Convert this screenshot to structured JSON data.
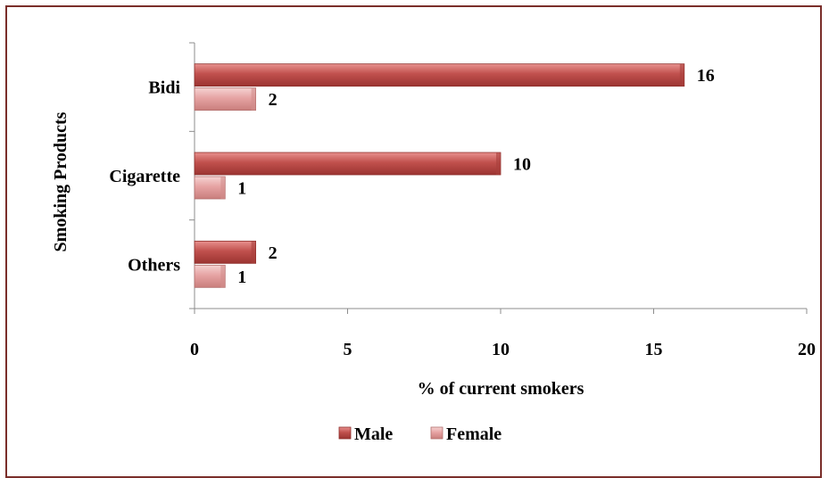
{
  "chart_data": {
    "type": "bar",
    "orientation": "horizontal",
    "categories": [
      "Bidi",
      "Cigarette",
      "Others"
    ],
    "series": [
      {
        "name": "Male",
        "values": [
          16,
          10,
          2
        ],
        "color": "#c0504d"
      },
      {
        "name": "Female",
        "values": [
          2,
          1,
          1
        ],
        "color": "#e6a3a3"
      }
    ],
    "data_labels": {
      "Male": [
        "16",
        "10",
        "2"
      ],
      "Female": [
        "2",
        "1",
        "1"
      ]
    },
    "xlabel": "% of current smokers",
    "ylabel": "Smoking Products",
    "xlim": [
      0,
      20
    ],
    "xticks": [
      "0",
      "5",
      "10",
      "15",
      "20"
    ],
    "grid": false,
    "legend_position": "bottom"
  }
}
